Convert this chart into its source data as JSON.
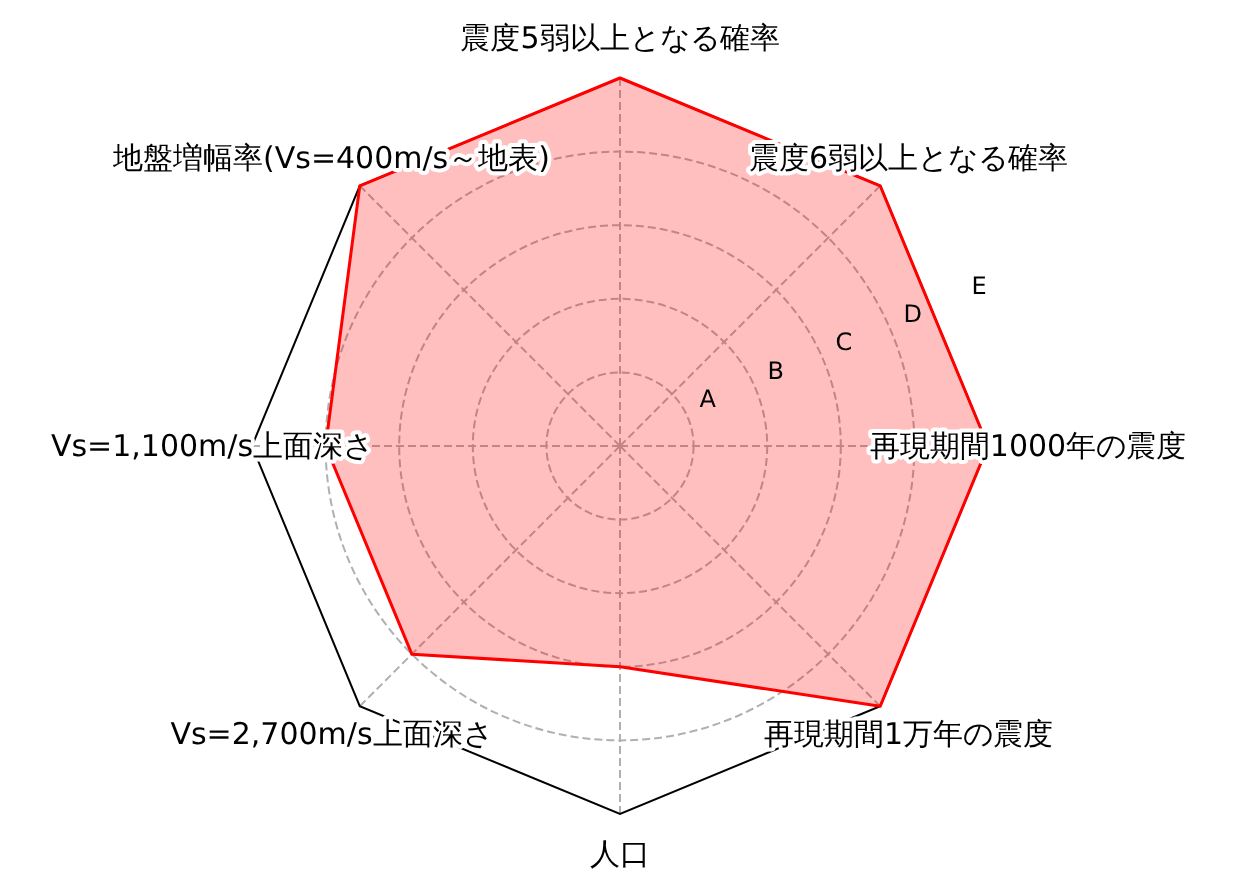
{
  "chart_data": {
    "type": "radar",
    "categories": [
      "震度5弱以上となる確率",
      "震度6弱以上となる確率",
      "再現期間1000年の震度",
      "再現期間1万年の震度",
      "人口",
      "Vs=2,700m/s上面深さ",
      "Vs=1,100m/s上面深さ",
      "地盤増幅率(Vs=400m/s～地表)"
    ],
    "series": [
      {
        "color": "#ff0000",
        "values": [
          5,
          5,
          5,
          5,
          3,
          4,
          4,
          5
        ]
      }
    ],
    "ylim": [
      0,
      5
    ],
    "yticks": [
      {
        "value": 1,
        "label": "A"
      },
      {
        "value": 2,
        "label": "B"
      },
      {
        "value": 3,
        "label": "C"
      },
      {
        "value": 4,
        "label": "D"
      },
      {
        "value": 5,
        "label": "E"
      }
    ],
    "grid": true
  }
}
